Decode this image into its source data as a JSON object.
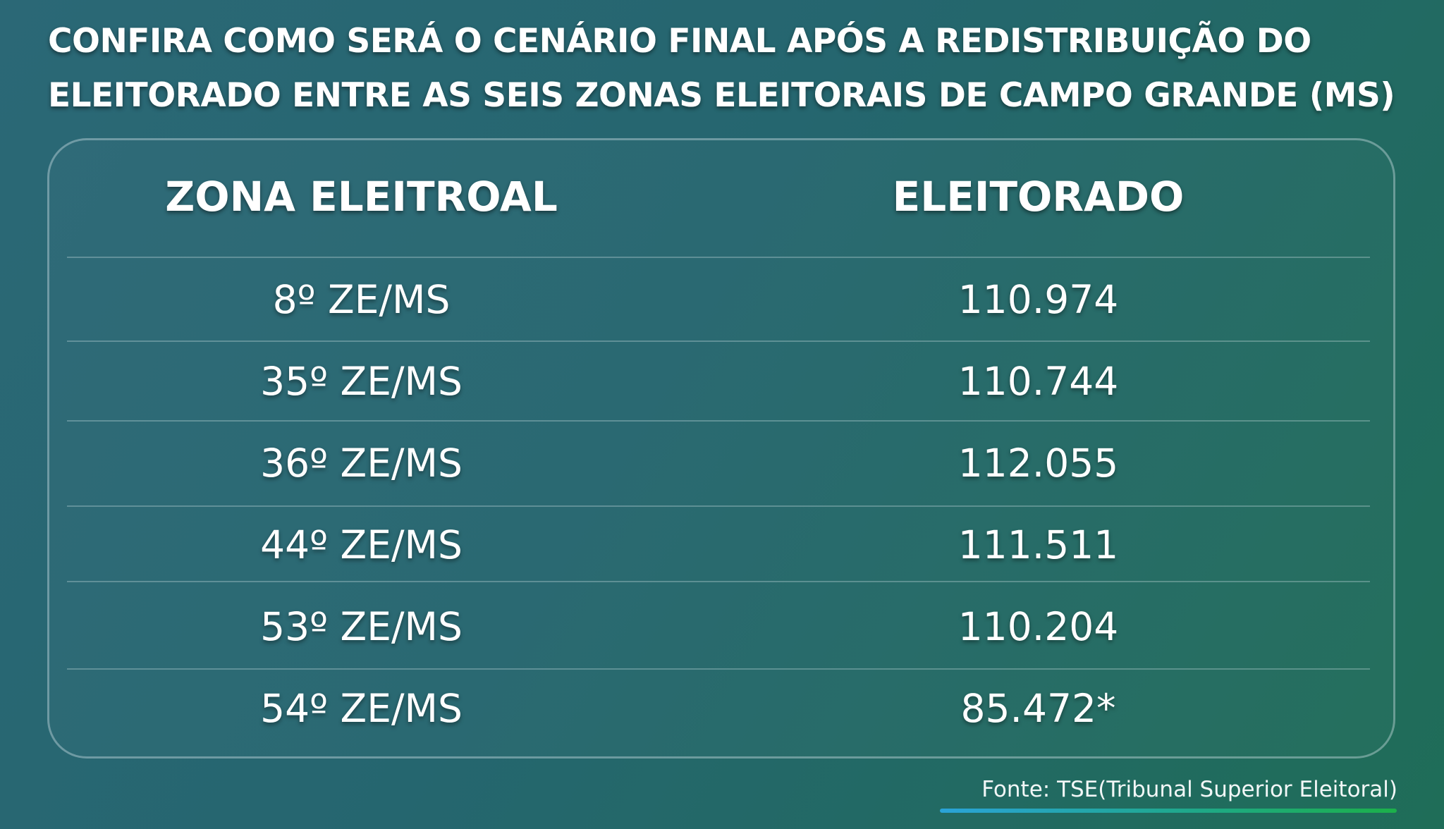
{
  "headline": {
    "line1": "CONFIRA COMO SERÁ O CENÁRIO FINAL APÓS A REDISTRIBUIÇÃO DO",
    "line2": "ELEITORADO ENTRE AS SEIS ZONAS ELEITORAIS DE CAMPO GRANDE (MS)"
  },
  "table": {
    "headers": {
      "zona": "ZONA ELEITROAL",
      "eleitorado": "ELEITORADO"
    },
    "rows": [
      {
        "zona": "8º ZE/MS",
        "eleitorado": "110.974"
      },
      {
        "zona": "35º ZE/MS",
        "eleitorado": "110.744"
      },
      {
        "zona": "36º ZE/MS",
        "eleitorado": "112.055"
      },
      {
        "zona": "44º ZE/MS",
        "eleitorado": "111.511"
      },
      {
        "zona": "53º ZE/MS",
        "eleitorado": "110.204"
      },
      {
        "zona": "54º ZE/MS",
        "eleitorado": "85.472*"
      }
    ]
  },
  "source": "Fonte: TSE(Tribunal Superior Eleitoral)",
  "colors": {
    "background_start": "#2b6876",
    "background_end": "#1f6d58",
    "text": "#ffffff",
    "underline_start": "#2aa3d8",
    "underline_end": "#1cb04a"
  }
}
